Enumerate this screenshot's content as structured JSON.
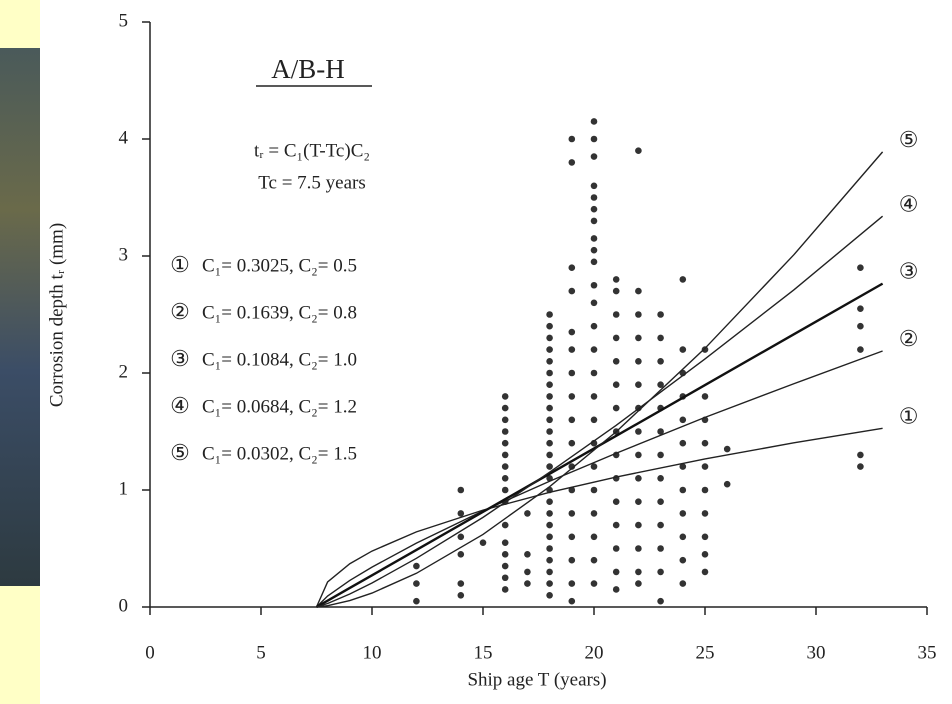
{
  "chart_data": {
    "type": "scatter",
    "title": "A/B-H",
    "annotations": [
      "tᵣ = C₁(T-Tc)C₂",
      "Tc = 7.5 years"
    ],
    "x_label": "Ship age  T  (years)",
    "y_label": "Corrosion depth  tᵣ (mm)",
    "xlim": [
      0,
      35
    ],
    "ylim": [
      0,
      5
    ],
    "xticks": [
      0,
      5,
      10,
      15,
      20,
      25,
      30,
      35
    ],
    "yticks": [
      0,
      1,
      2,
      3,
      4,
      5
    ],
    "point_color": "#333333",
    "columns": [
      {
        "x": 12,
        "values": [
          0.35,
          0.2,
          0.05
        ]
      },
      {
        "x": 14,
        "values": [
          1.0,
          0.8,
          0.6,
          0.45,
          0.2,
          0.1
        ]
      },
      {
        "x": 15,
        "values": [
          0.55
        ]
      },
      {
        "x": 16,
        "values": [
          1.8,
          1.7,
          1.6,
          1.5,
          1.4,
          1.3,
          1.2,
          1.1,
          1.0,
          0.9,
          0.7,
          0.55,
          0.45,
          0.35,
          0.25,
          0.15
        ]
      },
      {
        "x": 17,
        "values": [
          0.8,
          0.45,
          0.3,
          0.2
        ]
      },
      {
        "x": 18,
        "values": [
          2.5,
          2.4,
          2.3,
          2.2,
          2.1,
          2.0,
          1.9,
          1.8,
          1.7,
          1.6,
          1.5,
          1.4,
          1.3,
          1.2,
          1.1,
          1.0,
          0.9,
          0.8,
          0.7,
          0.6,
          0.5,
          0.4,
          0.3,
          0.2,
          0.1
        ]
      },
      {
        "x": 19,
        "values": [
          4.0,
          3.8,
          2.9,
          2.7,
          2.35,
          2.2,
          2.0,
          1.8,
          1.6,
          1.4,
          1.2,
          1.0,
          0.8,
          0.6,
          0.4,
          0.2,
          0.05
        ]
      },
      {
        "x": 20,
        "values": [
          4.15,
          4.0,
          3.85,
          3.6,
          3.5,
          3.4,
          3.3,
          3.15,
          3.05,
          2.95,
          2.75,
          2.6,
          2.4,
          2.2,
          2.0,
          1.8,
          1.6,
          1.4,
          1.2,
          1.0,
          0.8,
          0.6,
          0.4,
          0.2
        ]
      },
      {
        "x": 21,
        "values": [
          2.8,
          2.7,
          2.5,
          2.3,
          2.1,
          1.9,
          1.7,
          1.5,
          1.3,
          1.1,
          0.9,
          0.7,
          0.5,
          0.3,
          0.15
        ]
      },
      {
        "x": 22,
        "values": [
          3.9,
          2.7,
          2.5,
          2.3,
          2.1,
          1.9,
          1.7,
          1.5,
          1.3,
          1.1,
          0.9,
          0.7,
          0.5,
          0.3,
          0.2
        ]
      },
      {
        "x": 23,
        "values": [
          2.5,
          2.3,
          2.1,
          1.9,
          1.7,
          1.5,
          1.3,
          1.1,
          0.9,
          0.7,
          0.5,
          0.3,
          0.05
        ]
      },
      {
        "x": 24,
        "values": [
          2.8,
          2.2,
          2.0,
          1.8,
          1.6,
          1.4,
          1.2,
          1.0,
          0.8,
          0.6,
          0.4,
          0.2
        ]
      },
      {
        "x": 25,
        "values": [
          2.2,
          1.8,
          1.6,
          1.4,
          1.2,
          1.0,
          0.8,
          0.6,
          0.45,
          0.3
        ]
      },
      {
        "x": 26,
        "values": [
          1.35,
          1.05
        ]
      },
      {
        "x": 32,
        "values": [
          2.9,
          2.55,
          2.4,
          2.2,
          1.3,
          1.2
        ]
      }
    ],
    "series": [
      {
        "name": "①",
        "label": "C₁= 0.3025,  C₂= 0.5",
        "color": "#222222",
        "x": [
          7.5,
          8,
          9,
          10,
          12,
          15,
          18,
          21,
          25,
          29,
          33
        ],
        "values": [
          0,
          0.214,
          0.37,
          0.478,
          0.642,
          0.828,
          0.98,
          1.111,
          1.265,
          1.403,
          1.527
        ]
      },
      {
        "name": "②",
        "label": "C₁= 0.1639,  C₂= 0.8",
        "color": "#222222",
        "x": [
          7.5,
          8,
          9,
          10,
          12,
          15,
          18,
          21,
          25,
          29,
          33
        ],
        "values": [
          0,
          0.094,
          0.227,
          0.341,
          0.546,
          0.822,
          1.075,
          1.314,
          1.621,
          1.908,
          2.188
        ]
      },
      {
        "name": "③",
        "label": "C₁= 0.1084,  C₂= 1.0",
        "color": "#111111",
        "x": [
          7.5,
          8,
          9,
          10,
          12,
          15,
          18,
          21,
          25,
          29,
          33
        ],
        "values": [
          0,
          0.054,
          0.163,
          0.271,
          0.488,
          0.813,
          1.138,
          1.463,
          1.897,
          2.331,
          2.764
        ]
      },
      {
        "name": "④",
        "label": "C₁= 0.0684,  C₂= 1.2",
        "color": "#222222",
        "x": [
          7.5,
          8,
          9,
          10,
          12,
          15,
          18,
          21,
          25,
          29,
          33
        ],
        "values": [
          0,
          0.03,
          0.111,
          0.205,
          0.416,
          0.766,
          1.152,
          1.553,
          2.12,
          2.71,
          3.34
        ]
      },
      {
        "name": "⑤",
        "label": "C₁= 0.0302,  C₂= 1.5",
        "color": "#222222",
        "x": [
          7.5,
          8,
          9,
          10,
          12,
          15,
          18,
          21,
          25,
          29,
          33
        ],
        "values": [
          0,
          0.011,
          0.055,
          0.119,
          0.288,
          0.62,
          1.028,
          1.498,
          2.211,
          3.01,
          3.89
        ]
      }
    ]
  }
}
